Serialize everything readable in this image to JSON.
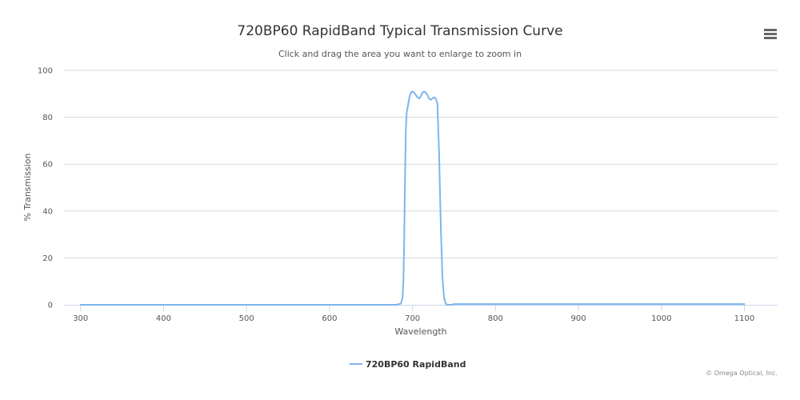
{
  "menu": {
    "icon": "hamburger-menu-icon"
  },
  "credit": "© Omega Optical, Inc.",
  "chart_data": {
    "type": "line",
    "title": "720BP60 RapidBand Typical Transmission Curve",
    "subtitle": "Click and drag the area you want to enlarge to zoom in",
    "xlabel": "Wavelength",
    "ylabel": "% Transmission",
    "xlim": [
      280,
      1140
    ],
    "ylim": [
      0,
      100
    ],
    "x_ticks": [
      300,
      400,
      500,
      600,
      700,
      800,
      900,
      1000,
      1100
    ],
    "y_ticks": [
      0,
      20,
      40,
      60,
      80,
      100
    ],
    "grid": "horizontal",
    "legend": "bottom-center",
    "series": [
      {
        "name": "720BP60 RapidBand",
        "color": "#7cb5ec",
        "x": [
          300,
          400,
          500,
          600,
          680,
          686,
          688,
          689,
          690,
          691,
          692,
          693,
          694,
          696,
          698,
          700,
          702,
          704,
          706,
          708,
          710,
          712,
          714,
          716,
          718,
          720,
          722,
          724,
          726,
          728,
          730,
          732,
          734,
          736,
          738,
          740,
          742,
          744,
          746,
          747,
          748,
          749,
          750,
          751,
          752,
          753,
          754,
          756,
          760,
          800,
          880,
          900,
          1000,
          1100
        ],
        "y": [
          0,
          0,
          0,
          0,
          0,
          0.5,
          3,
          10,
          28,
          55,
          75,
          82,
          84,
          88,
          90.5,
          91,
          90.5,
          89.5,
          88.5,
          88,
          89,
          90.5,
          91,
          90.5,
          89.5,
          88,
          87.5,
          88,
          88.5,
          88,
          86,
          65,
          35,
          12,
          3,
          0.5,
          0,
          0,
          0,
          0,
          0,
          0.3,
          0.3,
          0.3,
          0.3,
          0.3,
          0.3,
          0.3,
          0.3,
          0.3,
          0.3,
          0.3,
          0.3,
          0.3
        ]
      }
    ]
  }
}
